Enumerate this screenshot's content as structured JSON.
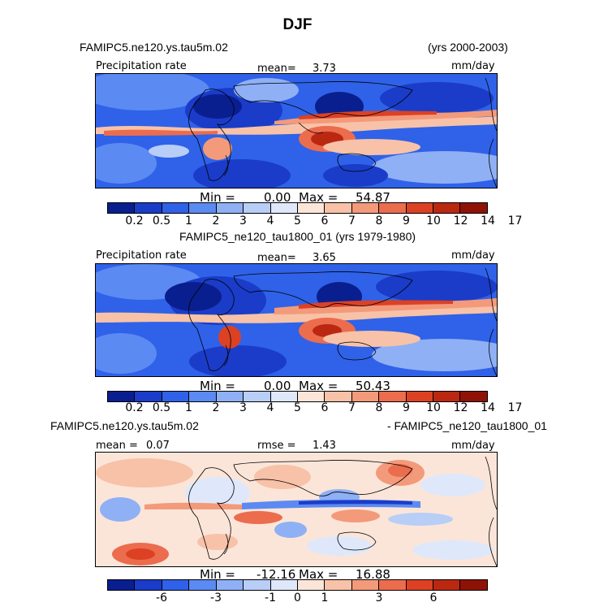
{
  "title": "DJF",
  "panel1": {
    "case_label": "FAMIPC5.ne120.ys.tau5m.02",
    "years": "(yrs 2000-2003)",
    "var_label": "Precipitation rate",
    "mean_label": "mean=",
    "mean_value": "3.73",
    "units": "mm/day",
    "min_label": "Min =",
    "min_value": "0.00",
    "max_label": "Max =",
    "max_value": "54.87"
  },
  "panel2": {
    "case_label": "FAMIPC5_ne120_tau1800_01 (yrs 1979-1980)",
    "var_label": "Precipitation rate",
    "mean_label": "mean=",
    "mean_value": "3.65",
    "units": "mm/day",
    "min_label": "Min =",
    "min_value": "0.00",
    "max_label": "Max =",
    "max_value": "50.43"
  },
  "panel3": {
    "case_label_left": "FAMIPC5.ne120.ys.tau5m.02",
    "case_label_right": "- FAMIPC5_ne120_tau1800_01",
    "mean_label": "mean =",
    "mean_value": "0.07",
    "rmse_label": "rmse =",
    "rmse_value": "1.43",
    "units": "mm/day",
    "min_label": "Min =",
    "min_value": "-12.16",
    "max_label": "Max =",
    "max_value": "16.88"
  },
  "colorbar_abs": {
    "colors": [
      "#0a1f8f",
      "#1a3cc8",
      "#2f62e8",
      "#5b8af2",
      "#8fb0f5",
      "#b8cef7",
      "#dfe8fa",
      "#fbe5d9",
      "#f8c2a8",
      "#f39a7b",
      "#ec6c4e",
      "#dc4124",
      "#bb2812",
      "#8e1306"
    ],
    "tick_labels": [
      "0.2",
      "0.5",
      "1",
      "2",
      "3",
      "4",
      "5",
      "6",
      "7",
      "8",
      "9",
      "10",
      "12",
      "14",
      "17"
    ]
  },
  "colorbar_diff": {
    "colors": [
      "#0a1f8f",
      "#1a3cc8",
      "#2f62e8",
      "#5b8af2",
      "#8fb0f5",
      "#b8cef7",
      "#dfe8fa",
      "#fbe5d9",
      "#f8c2a8",
      "#f39a7b",
      "#ec6c4e",
      "#dc4124",
      "#bb2812",
      "#8e1306"
    ],
    "tick_labels": [
      "-6",
      "-3",
      "-1",
      "0",
      "1",
      "3",
      "6"
    ],
    "tick_boundary_index": [
      2,
      4,
      6,
      7,
      8,
      10,
      12
    ]
  },
  "chart_data": [
    {
      "type": "heatmap",
      "title": "Precipitation rate",
      "case": "FAMIPC5.ne120.ys.tau5m.02",
      "years": "2000-2003",
      "season": "DJF",
      "units": "mm/day",
      "mean": 3.73,
      "min": 0.0,
      "max": 54.87,
      "contour_levels": [
        0.2,
        0.5,
        1,
        2,
        3,
        4,
        5,
        6,
        7,
        8,
        9,
        10,
        12,
        14,
        17
      ]
    },
    {
      "type": "heatmap",
      "title": "Precipitation rate",
      "case": "FAMIPC5_ne120_tau1800_01",
      "years": "1979-1980",
      "season": "DJF",
      "units": "mm/day",
      "mean": 3.65,
      "min": 0.0,
      "max": 50.43,
      "contour_levels": [
        0.2,
        0.5,
        1,
        2,
        3,
        4,
        5,
        6,
        7,
        8,
        9,
        10,
        12,
        14,
        17
      ]
    },
    {
      "type": "heatmap",
      "title": "FAMIPC5.ne120.ys.tau5m.02 - FAMIPC5_ne120_tau1800_01",
      "season": "DJF",
      "units": "mm/day",
      "mean": 0.07,
      "rmse": 1.43,
      "min": -12.16,
      "max": 16.88,
      "labeled_levels": [
        -6,
        -3,
        -1,
        0,
        1,
        3,
        6
      ]
    }
  ]
}
